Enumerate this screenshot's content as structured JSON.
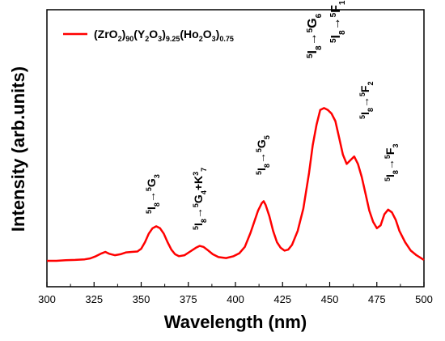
{
  "chart_data": {
    "type": "line",
    "xlabel": "Wavelength (nm)",
    "ylabel": "Intensity (arb.units)",
    "xlim": [
      300,
      500
    ],
    "ylim": [
      0,
      100
    ],
    "x_ticks": [
      "300",
      "325",
      "350",
      "375",
      "400",
      "425",
      "450",
      "475",
      "500"
    ],
    "y_ticks_shown": false,
    "grid": false,
    "legend": "top-left",
    "line_color": "#ff0000",
    "series": [
      {
        "name": "(ZrO2)90(Y2O3)9.25(Ho2O3)0.75",
        "x": [
          300,
          305,
          310,
          315,
          320,
          323,
          326,
          329,
          331,
          333,
          336,
          339,
          342,
          345,
          348,
          350,
          352,
          354,
          356,
          358,
          360,
          362,
          364,
          366,
          368,
          370,
          373,
          376,
          379,
          381,
          383,
          385,
          388,
          391,
          395,
          399,
          402,
          405,
          408,
          410,
          412,
          414,
          415,
          416,
          418,
          420,
          422,
          424,
          426,
          428,
          430,
          433,
          436,
          439,
          441,
          443,
          445,
          447,
          449,
          451,
          453,
          455,
          457,
          459,
          461,
          463,
          465,
          467,
          469,
          471,
          473,
          475,
          477,
          479,
          481,
          483,
          485,
          487,
          490,
          493,
          496,
          500
        ],
        "y": [
          0,
          0,
          0.3,
          0.5,
          0.8,
          1.3,
          2.5,
          4,
          4.8,
          3.8,
          3,
          3.5,
          4.5,
          4.8,
          5,
          6.5,
          10,
          14.5,
          17.5,
          18.5,
          17.5,
          14.5,
          10,
          6,
          3.5,
          2.5,
          3,
          5,
          7,
          8,
          7.5,
          6,
          3.5,
          2,
          1.5,
          2.5,
          4,
          7.5,
          15,
          21,
          27,
          31,
          32,
          30,
          24,
          16,
          10,
          7,
          5.5,
          6,
          8.5,
          16,
          28,
          47,
          62,
          73,
          81,
          82,
          81,
          79,
          75,
          66,
          57,
          52,
          54,
          56,
          52,
          45,
          36,
          27,
          21,
          17.5,
          19,
          25,
          27.5,
          26,
          22,
          16,
          10,
          5.5,
          3,
          0.5
        ]
      }
    ],
    "annotations": [
      {
        "lower": "8",
        "upper": "5",
        "level": "I",
        "arrow": "→",
        "term": "G",
        "sup": "5",
        "sub": "3",
        "extra": ""
      },
      {
        "lower": "8",
        "upper": "5",
        "level": "I",
        "arrow": "→",
        "term": "G",
        "sup": "5",
        "sub": "4",
        "extra": "+K",
        "extra_sup": "3",
        "extra_sub": "7"
      },
      {
        "lower": "8",
        "upper": "5",
        "level": "I",
        "arrow": "→",
        "term": "G",
        "sup": "5",
        "sub": "5",
        "extra": ""
      },
      {
        "lower": "8",
        "upper": "5",
        "level": "I",
        "arrow": "→",
        "term": "G",
        "sup": "5",
        "sub": "6",
        "extra": ""
      },
      {
        "lower": "8",
        "upper": "5",
        "level": "I",
        "arrow": "→",
        "term": "F",
        "sup": "5",
        "sub": "1",
        "extra": ""
      },
      {
        "lower": "8",
        "upper": "5",
        "level": "I",
        "arrow": "→",
        "term": "F",
        "sup": "5",
        "sub": "2",
        "extra": ""
      },
      {
        "lower": "8",
        "upper": "5",
        "level": "I",
        "arrow": "→",
        "term": "F",
        "sup": "5",
        "sub": "3",
        "extra": ""
      }
    ],
    "legend_parts": [
      {
        "t": "(ZrO",
        "k": "n"
      },
      {
        "t": "2",
        "k": "sub"
      },
      {
        "t": ")",
        "k": "n"
      },
      {
        "t": "90",
        "k": "sub"
      },
      {
        "t": "(Y",
        "k": "n"
      },
      {
        "t": "2",
        "k": "sub"
      },
      {
        "t": "O",
        "k": "n"
      },
      {
        "t": "3",
        "k": "sub"
      },
      {
        "t": ")",
        "k": "n"
      },
      {
        "t": "9.25",
        "k": "sub"
      },
      {
        "t": "(Ho",
        "k": "n"
      },
      {
        "t": "2",
        "k": "sub"
      },
      {
        "t": "O",
        "k": "n"
      },
      {
        "t": "3",
        "k": "sub"
      },
      {
        "t": ")",
        "k": "n"
      },
      {
        "t": "0.75",
        "k": "sub"
      }
    ]
  }
}
